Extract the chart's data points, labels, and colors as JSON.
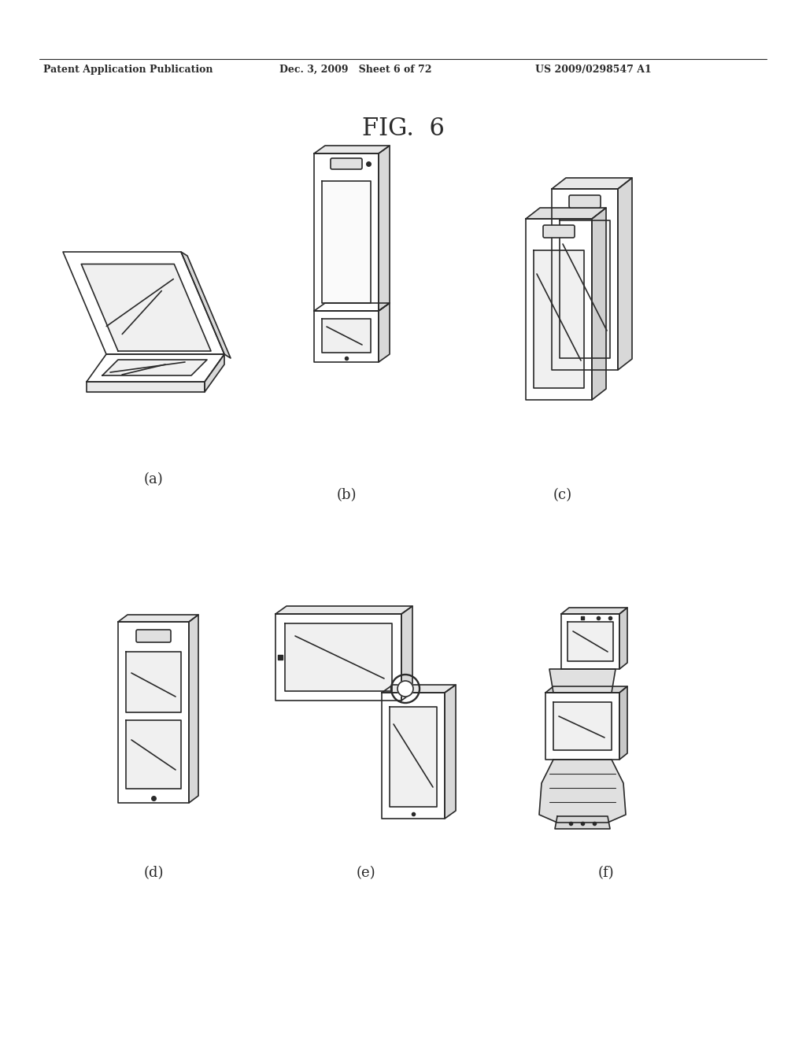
{
  "title": "FIG.  6",
  "header_left": "Patent Application Publication",
  "header_mid": "Dec. 3, 2009   Sheet 6 of 72",
  "header_right": "US 2009/0298547 A1",
  "labels": [
    "(a)",
    "(b)",
    "(c)",
    "(d)",
    "(e)",
    "(f)"
  ],
  "bg_color": "#ffffff",
  "line_color": "#2a2a2a",
  "header_fontsize": 9,
  "title_fontsize": 22,
  "label_fontsize": 13
}
